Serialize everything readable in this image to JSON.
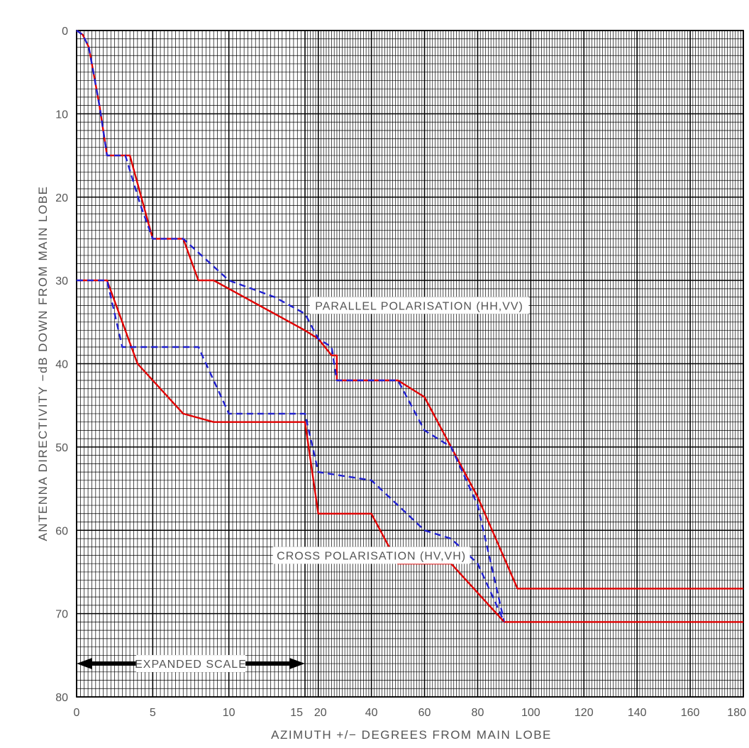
{
  "chart_data": {
    "type": "line",
    "title": "",
    "xlabel": "AZIMUTH +/− DEGREES FROM MAIN LOBE",
    "ylabel": "ANTENNA DIRECTIVITY −dB DOWN FROM MAIN LOBE",
    "ylim": [
      0,
      80
    ],
    "yticks": [
      0,
      10,
      20,
      30,
      40,
      50,
      60,
      70,
      80
    ],
    "y_tick_labels": [
      "0",
      "10",
      "20",
      "30",
      "40",
      "50",
      "60",
      "70",
      "80"
    ],
    "x_scale": "piecewise: linear expanded scale 0–15 deg, then linear 15–180 deg",
    "x_tick_values": [
      0,
      5,
      10,
      15,
      20,
      40,
      60,
      80,
      100,
      120,
      140,
      160,
      180
    ],
    "x_tick_labels": [
      "0",
      "5",
      "10",
      "15",
      "20",
      "40",
      "60",
      "80",
      "100",
      "120",
      "140",
      "160",
      "180"
    ],
    "grid": true,
    "series": [
      {
        "color": "#e00000",
        "style": "solid",
        "points": [
          [
            0,
            0
          ],
          [
            0.4,
            0.5
          ],
          [
            0.8,
            2
          ],
          [
            1.2,
            6
          ],
          [
            1.5,
            9
          ],
          [
            2,
            15
          ],
          [
            3.5,
            15
          ],
          [
            5,
            25
          ],
          [
            7,
            25
          ],
          [
            8,
            30
          ],
          [
            9,
            30
          ],
          [
            15,
            36
          ],
          [
            20,
            37
          ],
          [
            25,
            39
          ],
          [
            27,
            39
          ],
          [
            27,
            42
          ],
          [
            50,
            42
          ],
          [
            60,
            44
          ],
          [
            70,
            50
          ],
          [
            80,
            56
          ],
          [
            95,
            67
          ],
          [
            180,
            67
          ]
        ]
      },
      {
        "color": "#2020d0",
        "style": "dashed",
        "points": [
          [
            0,
            0
          ],
          [
            0.4,
            0.5
          ],
          [
            0.8,
            2
          ],
          [
            1.2,
            6
          ],
          [
            1.5,
            9
          ],
          [
            2,
            15
          ],
          [
            3.2,
            15
          ],
          [
            4.2,
            21
          ],
          [
            5,
            25
          ],
          [
            7,
            25
          ],
          [
            10,
            30
          ],
          [
            13,
            32
          ],
          [
            15,
            34
          ],
          [
            20,
            37
          ],
          [
            25,
            38
          ],
          [
            27,
            42
          ],
          [
            50,
            42
          ],
          [
            60,
            48
          ],
          [
            70,
            50
          ],
          [
            80,
            57
          ],
          [
            90,
            71
          ]
        ]
      },
      {
        "color": "#e00000",
        "style": "solid",
        "points": [
          [
            0,
            30
          ],
          [
            2,
            30
          ],
          [
            4,
            40
          ],
          [
            7,
            46
          ],
          [
            9,
            47
          ],
          [
            15,
            47
          ],
          [
            20,
            58
          ],
          [
            40,
            58
          ],
          [
            50,
            64
          ],
          [
            70,
            64
          ],
          [
            90,
            71
          ],
          [
            180,
            71
          ]
        ]
      },
      {
        "color": "#2020d0",
        "style": "dashed",
        "points": [
          [
            0,
            30
          ],
          [
            2,
            30
          ],
          [
            3,
            38
          ],
          [
            8,
            38
          ],
          [
            10,
            46
          ],
          [
            15,
            46
          ],
          [
            20,
            53
          ],
          [
            40,
            54
          ],
          [
            50,
            57
          ],
          [
            60,
            60
          ],
          [
            70,
            61
          ],
          [
            80,
            64
          ],
          [
            90,
            71
          ]
        ]
      }
    ],
    "annotations": [
      {
        "text": "PARALLEL POLARISATION (HH,VV)",
        "x": 58,
        "y": 33
      },
      {
        "text": "CROSS POLARISATION (HV,VH)",
        "x": 40,
        "y": 63
      },
      {
        "text": "EXPANDED SCALE",
        "x": 7.5,
        "y": 76,
        "arrow_from": 0,
        "arrow_to": 15
      }
    ]
  }
}
